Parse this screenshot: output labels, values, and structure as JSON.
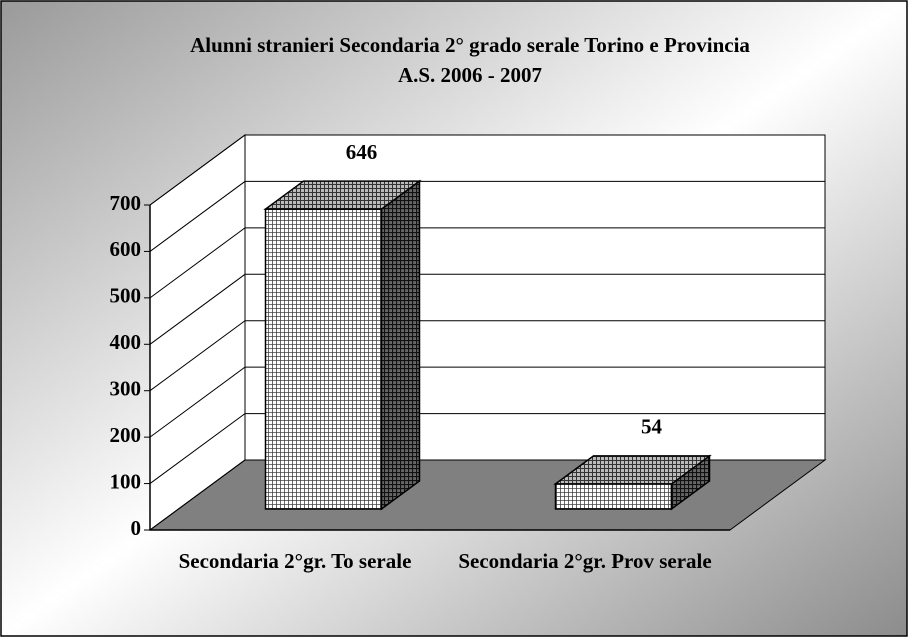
{
  "chart_data": {
    "type": "bar3d",
    "title": "Alunni stranieri Secondaria 2° grado serale Torino e Provincia",
    "subtitle": "A.S. 2006 - 2007",
    "categories": [
      "Secondaria 2°gr. To serale",
      "Secondaria 2°gr. Prov serale"
    ],
    "values": [
      646,
      54
    ],
    "ylim": [
      0,
      700
    ],
    "yticks": [
      0,
      100,
      200,
      300,
      400,
      500,
      600,
      700
    ],
    "grid": true
  }
}
